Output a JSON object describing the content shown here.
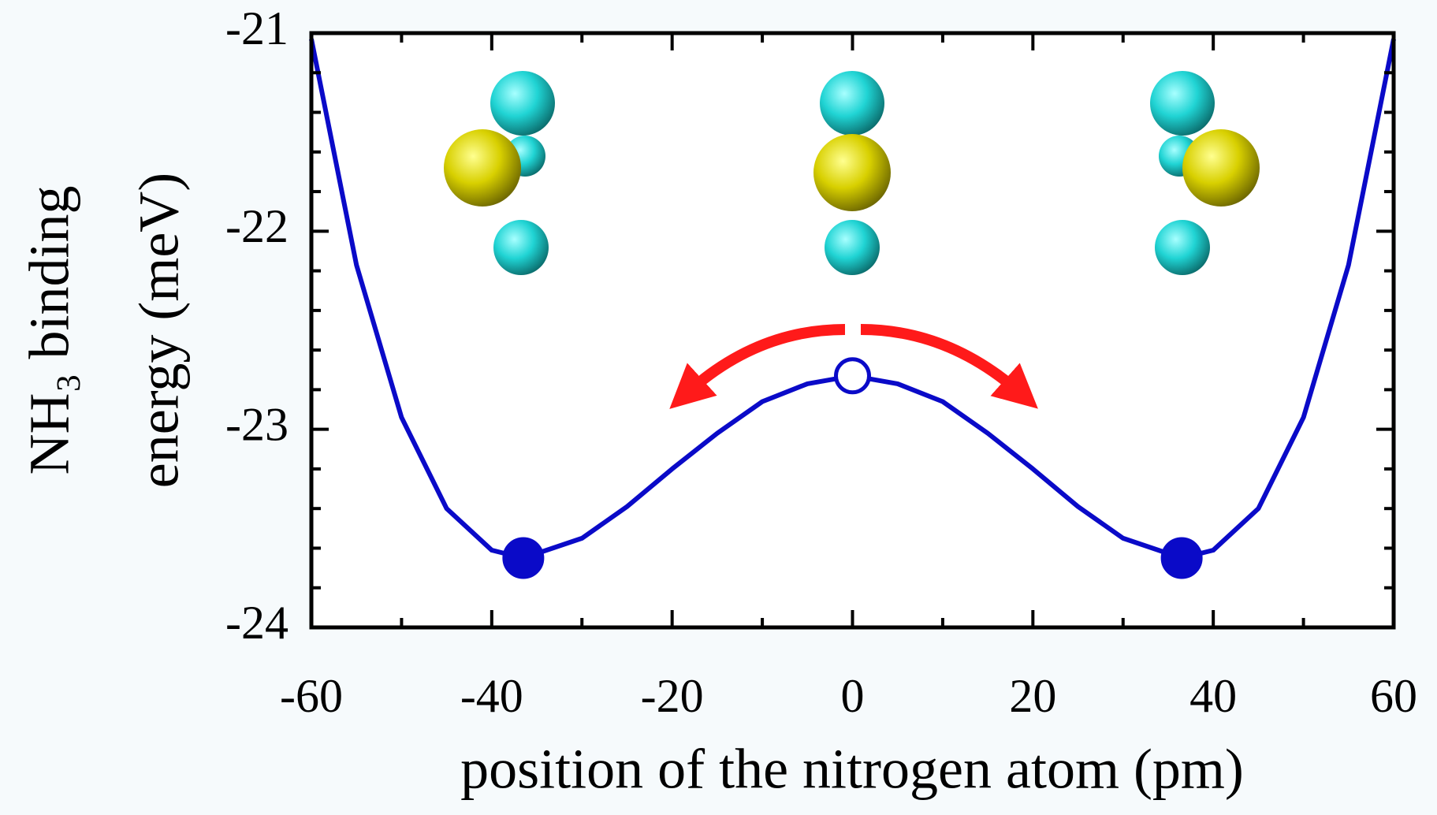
{
  "chart_data": {
    "type": "line",
    "xlabel": "position of the nitrogen atom (pm)",
    "ylabel": [
      "NH₃ binding",
      "energy (meV)"
    ],
    "xlim": [
      -60,
      60
    ],
    "ylim": [
      -24,
      -21
    ],
    "xticks": [
      -60,
      -40,
      -20,
      0,
      20,
      40,
      60
    ],
    "yticks": [
      -24,
      -23,
      -22,
      -21
    ],
    "xminor_ticks": [
      -50,
      -30,
      -10,
      10,
      30,
      50
    ],
    "yminor_ticks": [
      -23.8,
      -23.6,
      -23.4,
      -23.2,
      -22.8,
      -22.6,
      -22.4,
      -22.2,
      -21.8,
      -21.6,
      -21.4,
      -21.2
    ],
    "series": [
      {
        "type": "line",
        "color": "#0a0ac8",
        "x": [
          -60,
          -55,
          -50,
          -45,
          -40,
          -36.5,
          -30,
          -25,
          -20,
          -15,
          -10,
          -5,
          0,
          5,
          10,
          15,
          20,
          25,
          30,
          36.5,
          40,
          45,
          50,
          55,
          60
        ],
        "values": [
          -21.03,
          -22.17,
          -22.94,
          -23.4,
          -23.61,
          -23.65,
          -23.55,
          -23.39,
          -23.2,
          -23.02,
          -22.86,
          -22.77,
          -22.73,
          -22.77,
          -22.86,
          -23.02,
          -23.2,
          -23.39,
          -23.55,
          -23.65,
          -23.61,
          -23.4,
          -22.94,
          -22.17,
          -21.03
        ]
      },
      {
        "type": "scatter",
        "color": "#0a0ac8",
        "filled": true,
        "x": [
          -36.5,
          36.5
        ],
        "values": [
          -23.65,
          -23.65
        ]
      },
      {
        "type": "scatter",
        "color": "#0a0ac8",
        "filled": false,
        "x": [
          0
        ],
        "values": [
          -22.73
        ]
      }
    ]
  }
}
